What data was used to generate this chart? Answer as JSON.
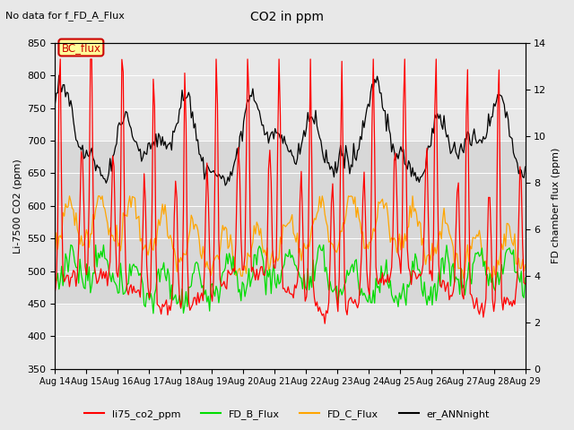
{
  "title": "CO2 in ppm",
  "subtitle": "No data for f_FD_A_Flux",
  "ylabel_left": "Li-7500 CO2 (ppm)",
  "ylabel_right": "FD chamber flux (ppm)",
  "ylim_left": [
    350,
    850
  ],
  "ylim_right": [
    0,
    14
  ],
  "yticks_left": [
    350,
    400,
    450,
    500,
    550,
    600,
    650,
    700,
    750,
    800,
    850
  ],
  "yticks_right": [
    0,
    2,
    4,
    6,
    8,
    10,
    12,
    14
  ],
  "x_labels": [
    "Aug 14",
    "Aug 15",
    "Aug 16",
    "Aug 17",
    "Aug 18",
    "Aug 19",
    "Aug 20",
    "Aug 21",
    "Aug 22",
    "Aug 23",
    "Aug 24",
    "Aug 25",
    "Aug 26",
    "Aug 27",
    "Aug 28",
    "Aug 29"
  ],
  "bc_flux_box_color": "#FFFF99",
  "bc_flux_text_color": "#CC0000",
  "bc_flux_border_color": "#CC0000",
  "legend_items": [
    {
      "label": "li75_co2_ppm",
      "color": "#FF0000"
    },
    {
      "label": "FD_B_Flux",
      "color": "#00DD00"
    },
    {
      "label": "FD_C_Flux",
      "color": "#FFA500"
    },
    {
      "label": "er_ANNnight",
      "color": "#000000"
    }
  ],
  "band_color": "#D8D8D8",
  "band_ylim": [
    450,
    700
  ],
  "background_color": "#E8E8E8"
}
